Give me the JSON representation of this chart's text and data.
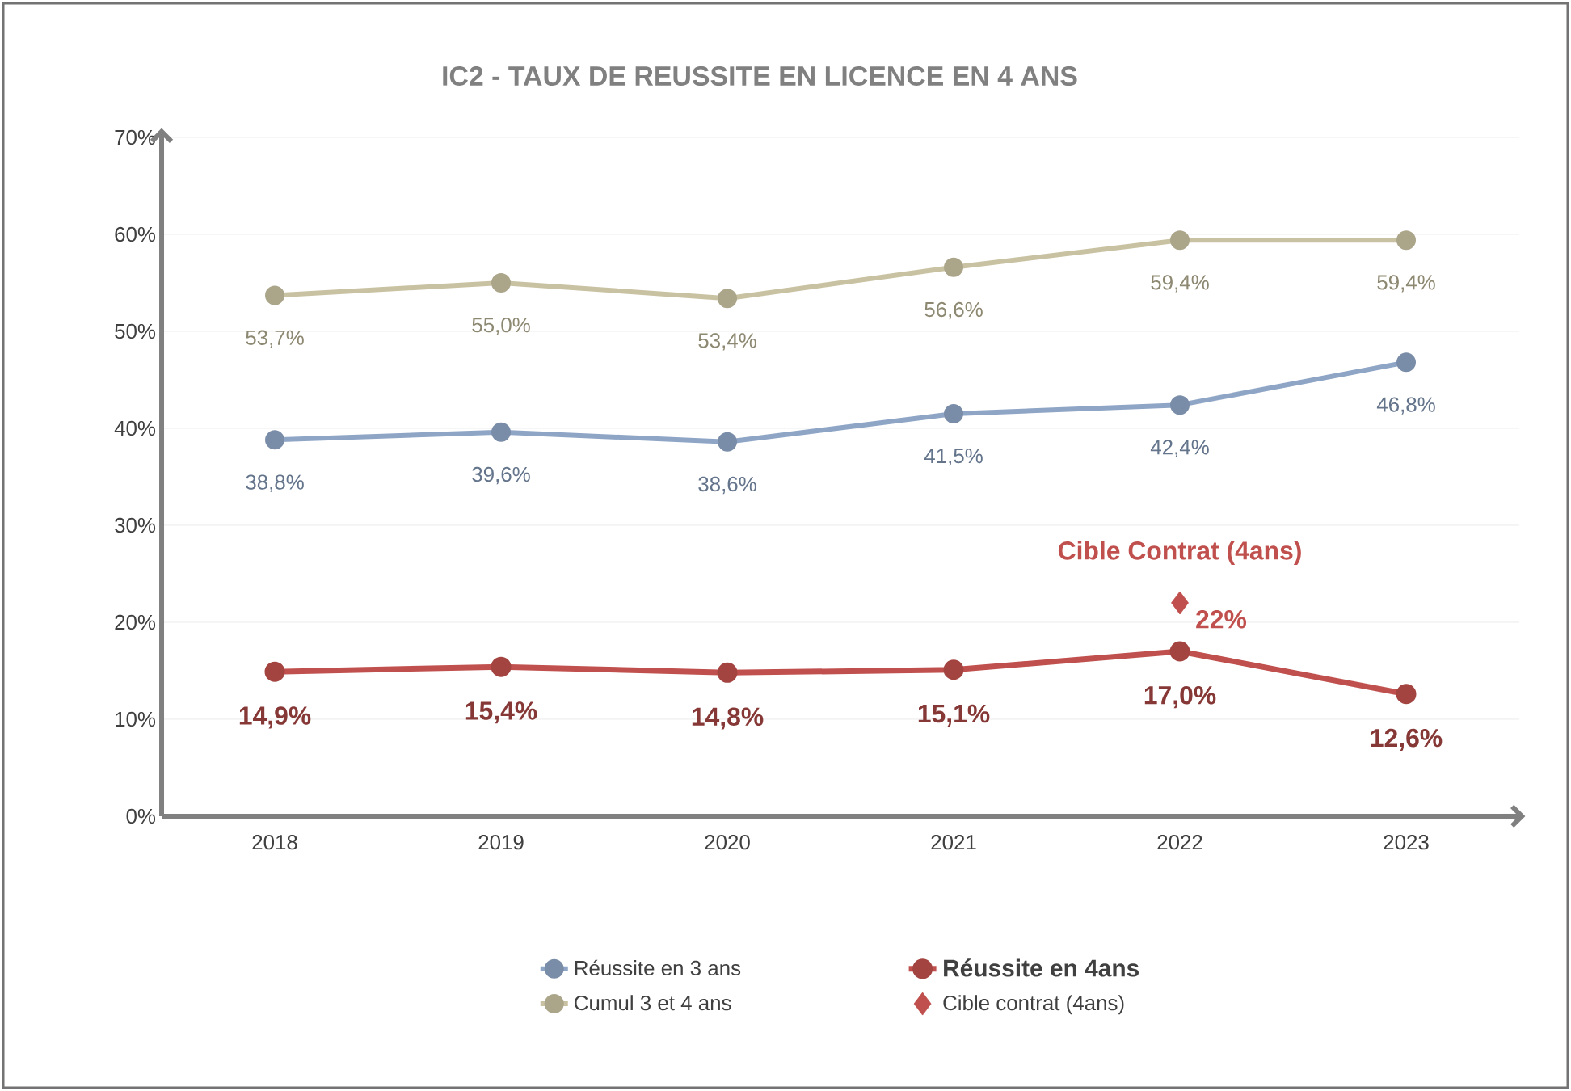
{
  "chart_data": {
    "type": "line",
    "title": "IC2 - TAUX DE REUSSITE EN LICENCE EN 4 ANS",
    "categories": [
      "2018",
      "2019",
      "2020",
      "2021",
      "2022",
      "2023"
    ],
    "series": [
      {
        "name": "Réussite en 3 ans",
        "color": "#8ea5c6",
        "values": [
          38.8,
          39.6,
          38.6,
          41.5,
          42.4,
          46.8
        ],
        "value_labels": [
          "38,8%",
          "39,6%",
          "38,6%",
          "41,5%",
          "42,4%",
          "46,8%"
        ]
      },
      {
        "name": "Réussite en 4ans",
        "color": "#c0504d",
        "values": [
          14.9,
          15.4,
          14.8,
          15.1,
          17.0,
          12.6
        ],
        "value_labels": [
          "14,9%",
          "15,4%",
          "14,8%",
          "15,1%",
          "17,0%",
          "12,6%"
        ]
      },
      {
        "name": "Cumul 3 et 4 ans",
        "color": "#c9c2a2",
        "values": [
          53.7,
          55.0,
          53.4,
          56.6,
          59.4,
          59.4
        ],
        "value_labels": [
          "53,7%",
          "55,0%",
          "53,4%",
          "56,6%",
          "59,4%",
          "59,4%"
        ]
      },
      {
        "name": "Cible contrat (4ans)",
        "type": "scatter",
        "marker": "diamond",
        "color": "#c0504d",
        "values": [
          null,
          null,
          null,
          null,
          22,
          null
        ],
        "value_labels": [
          null,
          null,
          null,
          null,
          "22%",
          null
        ]
      }
    ],
    "ylim": [
      0,
      70
    ],
    "yticks": [
      {
        "value": 0,
        "label": "0%"
      },
      {
        "value": 10,
        "label": "10%"
      },
      {
        "value": 20,
        "label": "20%"
      },
      {
        "value": 30,
        "label": "30%"
      },
      {
        "value": 40,
        "label": "40%"
      },
      {
        "value": 50,
        "label": "50%"
      },
      {
        "value": 60,
        "label": "60%"
      },
      {
        "value": 70,
        "label": "70%"
      }
    ],
    "grid": "y",
    "legend": "bottom",
    "marker": "circle",
    "annotations": [
      {
        "text": "Cible Contrat (4ans)",
        "x": "2022",
        "y": 22
      }
    ]
  }
}
